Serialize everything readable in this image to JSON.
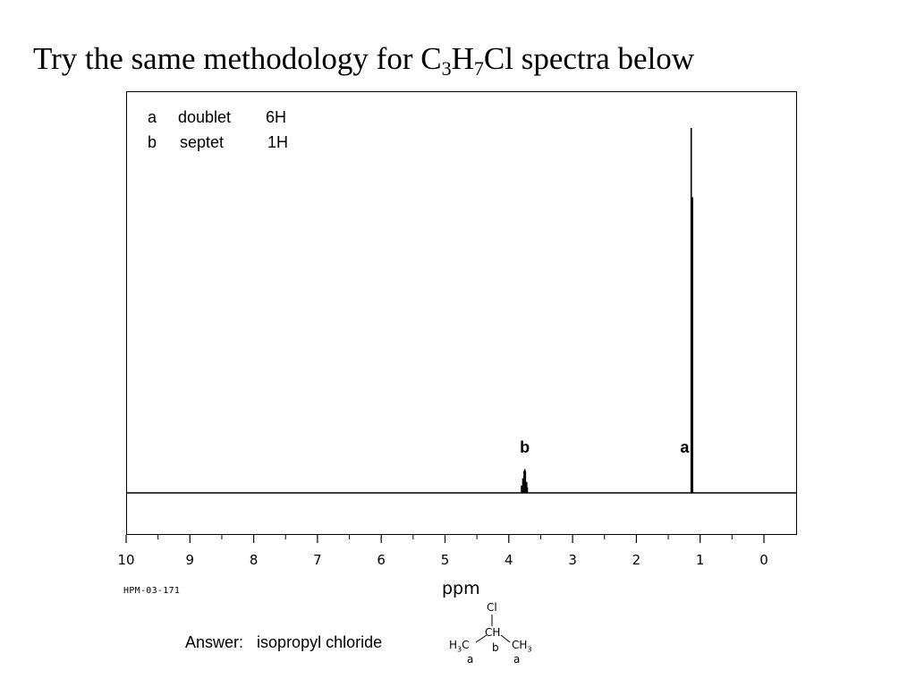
{
  "slide": {
    "title_parts": [
      "Try the same methodology for C",
      "3",
      "H",
      "7",
      "Cl spectra below"
    ]
  },
  "peak_table": [
    {
      "label": "a",
      "multiplicity": "doublet",
      "integration": "6H"
    },
    {
      "label": "b",
      "multiplicity": "septet",
      "integration": "1H"
    }
  ],
  "spectrum_id": "HPM-03-171",
  "answer": {
    "prefix": "Answer:",
    "compound": "isopropyl chloride"
  },
  "structure": {
    "cl": "Cl",
    "ch": "CH",
    "left_ch3": "H",
    "left_ch3_sub": "3",
    "left_ch3_c": "C",
    "right_ch3": "CH",
    "right_ch3_sub": "3",
    "label_left": "a",
    "label_center": "b",
    "label_right": "a"
  },
  "chart_data": {
    "type": "line",
    "xlabel": "ppm",
    "xlim": [
      10,
      0
    ],
    "x_ticks": [
      10,
      9,
      8,
      7,
      6,
      5,
      4,
      3,
      2,
      1,
      0
    ],
    "x_tick_labels": [
      "10",
      "9",
      "8",
      "7",
      "6",
      "5",
      "4",
      "3",
      "2",
      "1",
      "0"
    ],
    "y_relative_max": 1.0,
    "peaks": [
      {
        "label": "b",
        "center_ppm": 3.75,
        "lines": [
          {
            "ppm": 3.8,
            "height": 0.02
          },
          {
            "ppm": 3.78,
            "height": 0.04
          },
          {
            "ppm": 3.76,
            "height": 0.06
          },
          {
            "ppm": 3.75,
            "height": 0.065
          },
          {
            "ppm": 3.74,
            "height": 0.06
          },
          {
            "ppm": 3.72,
            "height": 0.03
          },
          {
            "ppm": 3.71,
            "height": 0.015
          }
        ]
      },
      {
        "label": "a",
        "center_ppm": 1.13,
        "lines": [
          {
            "ppm": 1.14,
            "height": 1.0
          },
          {
            "ppm": 1.12,
            "height": 0.81
          }
        ]
      }
    ],
    "colors": {
      "trace": "#000000",
      "frame": "#000000"
    }
  }
}
